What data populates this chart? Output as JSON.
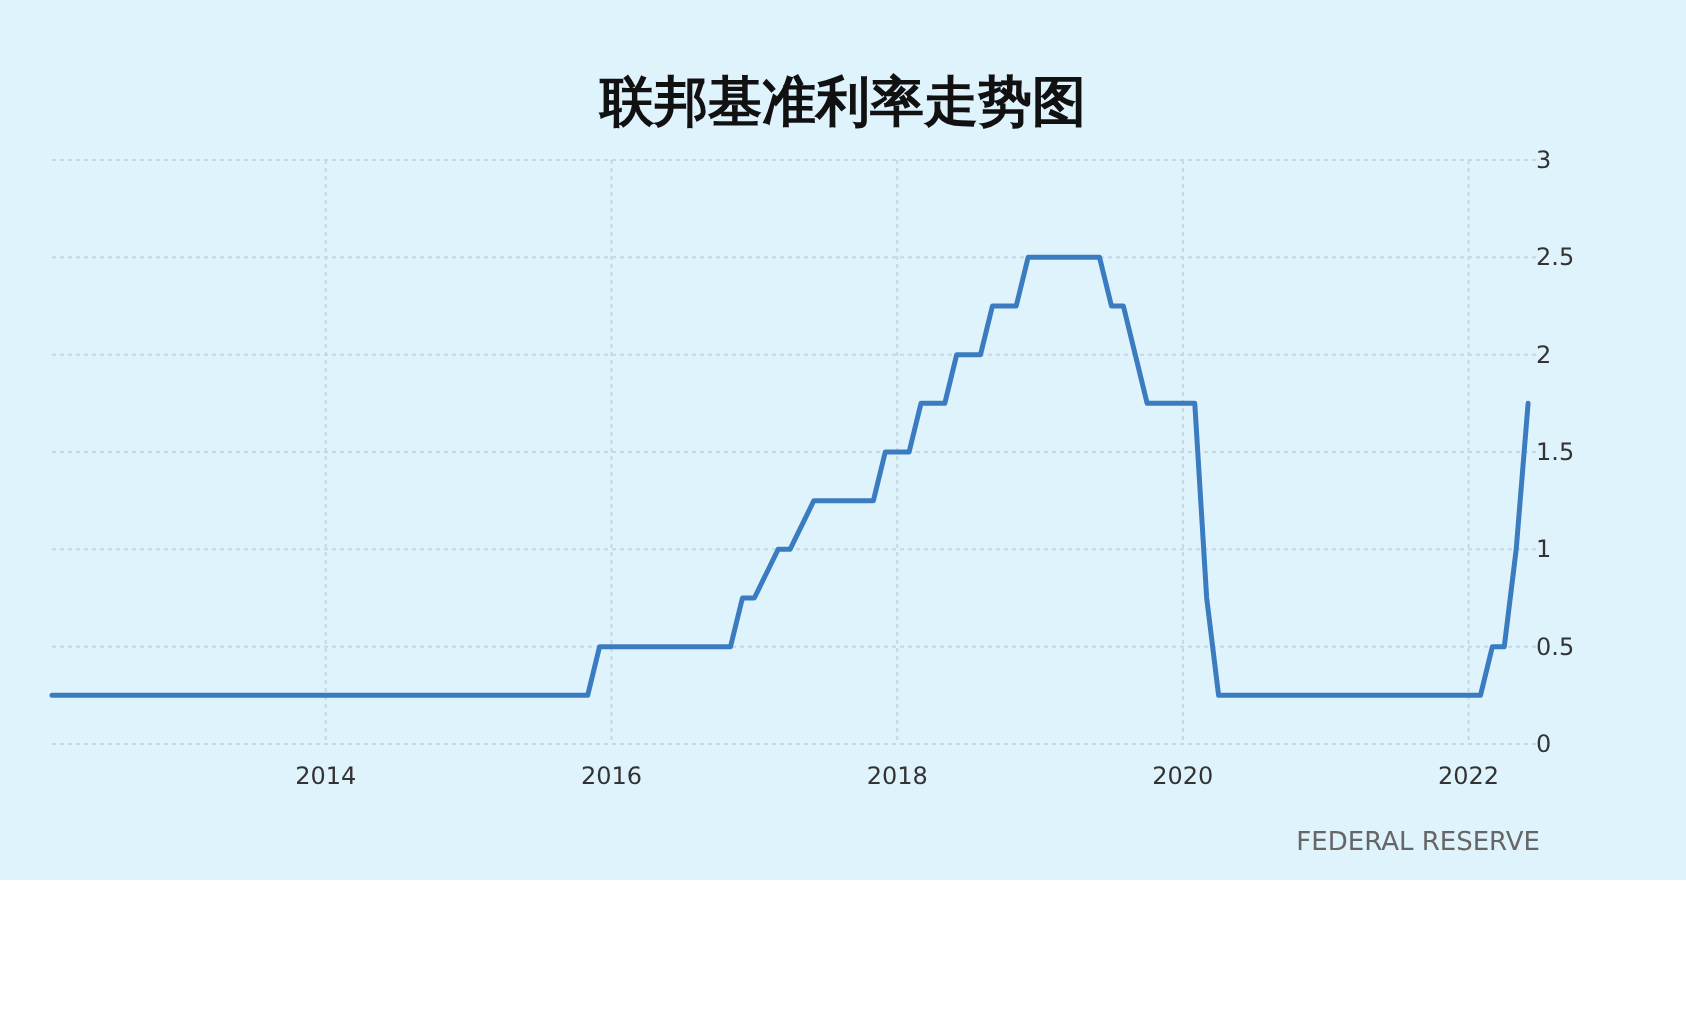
{
  "chart_data": {
    "type": "line",
    "title": "联邦基准利率走势图",
    "x": [
      "2012-02",
      "2015-11",
      "2015-12",
      "2016-11",
      "2016-12",
      "2017-01",
      "2017-03",
      "2017-04",
      "2017-06",
      "2017-11",
      "2017-12",
      "2018-02",
      "2018-03",
      "2018-05",
      "2018-06",
      "2018-08",
      "2018-09",
      "2018-11",
      "2018-12",
      "2019-06",
      "2019-07",
      "2019-08",
      "2019-09",
      "2019-10",
      "2020-02",
      "2020-03",
      "2020-04",
      "2022-02",
      "2022-03",
      "2022-04",
      "2022-05",
      "2022-06"
    ],
    "series": [
      {
        "color": "#3a7cbf",
        "values": [
          0.25,
          0.25,
          0.5,
          0.5,
          0.75,
          0.75,
          1.0,
          1.0,
          1.25,
          1.25,
          1.5,
          1.5,
          1.75,
          1.75,
          2.0,
          2.0,
          2.25,
          2.25,
          2.5,
          2.5,
          2.25,
          2.25,
          2.0,
          1.75,
          1.75,
          0.75,
          0.25,
          0.25,
          0.5,
          0.5,
          1.0,
          1.75
        ]
      }
    ],
    "xlim": [
      "2012-02",
      "2022-07"
    ],
    "xticks": [
      "2014",
      "2016",
      "2018",
      "2020",
      "2022"
    ],
    "ylim": [
      0,
      3
    ],
    "yticks": [
      0,
      0.5,
      1,
      1.5,
      2,
      2.5,
      3
    ],
    "grid": true,
    "line_style": "solid",
    "annotations": [
      "FEDERAL RESERVE"
    ]
  }
}
